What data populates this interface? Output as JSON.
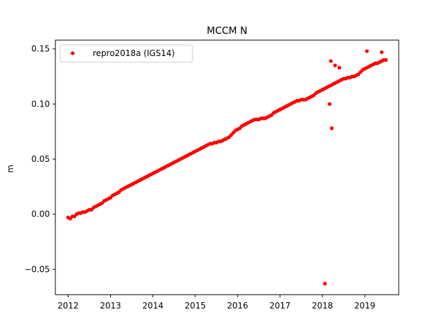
{
  "chart_data": {
    "type": "scatter",
    "title": "MCCM N",
    "xlabel": "",
    "ylabel": "m",
    "xlim": [
      2011.7,
      2019.8
    ],
    "ylim": [
      -0.073,
      0.158
    ],
    "xticks": [
      2012,
      2013,
      2014,
      2015,
      2016,
      2017,
      2018,
      2019
    ],
    "xtick_labels": [
      "2012",
      "2013",
      "2014",
      "2015",
      "2016",
      "2017",
      "2018",
      "2019"
    ],
    "yticks": [
      -0.05,
      0.0,
      0.05,
      0.1,
      0.15
    ],
    "ytick_labels": [
      "−0.05",
      "0.00",
      "0.05",
      "0.10",
      "0.15"
    ],
    "grid": false,
    "legend_position": "upper-left",
    "series": [
      {
        "name": "repro2018a (IGS14)",
        "color": "#ff0000",
        "marker": "circle",
        "points": [
          [
            2012.0,
            -0.003
          ],
          [
            2012.05,
            -0.004
          ],
          [
            2012.1,
            -0.002
          ],
          [
            2012.15,
            -0.002
          ],
          [
            2012.2,
            0.0
          ],
          [
            2012.25,
            0.001
          ],
          [
            2012.3,
            0.001
          ],
          [
            2012.35,
            0.002
          ],
          [
            2012.4,
            0.002
          ],
          [
            2012.45,
            0.003
          ],
          [
            2012.5,
            0.004
          ],
          [
            2012.55,
            0.004
          ],
          [
            2012.6,
            0.006
          ],
          [
            2012.65,
            0.007
          ],
          [
            2012.7,
            0.008
          ],
          [
            2012.75,
            0.009
          ],
          [
            2012.8,
            0.01
          ],
          [
            2012.85,
            0.012
          ],
          [
            2012.9,
            0.013
          ],
          [
            2012.95,
            0.014
          ],
          [
            2013.0,
            0.015
          ],
          [
            2013.05,
            0.017
          ],
          [
            2013.1,
            0.018
          ],
          [
            2013.15,
            0.019
          ],
          [
            2013.2,
            0.02
          ],
          [
            2013.25,
            0.022
          ],
          [
            2013.3,
            0.023
          ],
          [
            2013.35,
            0.024
          ],
          [
            2013.4,
            0.025
          ],
          [
            2013.45,
            0.026
          ],
          [
            2013.5,
            0.027
          ],
          [
            2013.55,
            0.028
          ],
          [
            2013.6,
            0.029
          ],
          [
            2013.65,
            0.03
          ],
          [
            2013.7,
            0.031
          ],
          [
            2013.75,
            0.032
          ],
          [
            2013.8,
            0.033
          ],
          [
            2013.85,
            0.034
          ],
          [
            2013.9,
            0.035
          ],
          [
            2013.95,
            0.036
          ],
          [
            2014.0,
            0.037
          ],
          [
            2014.05,
            0.038
          ],
          [
            2014.1,
            0.039
          ],
          [
            2014.15,
            0.04
          ],
          [
            2014.2,
            0.041
          ],
          [
            2014.25,
            0.042
          ],
          [
            2014.3,
            0.043
          ],
          [
            2014.35,
            0.044
          ],
          [
            2014.4,
            0.045
          ],
          [
            2014.45,
            0.046
          ],
          [
            2014.5,
            0.047
          ],
          [
            2014.55,
            0.048
          ],
          [
            2014.6,
            0.049
          ],
          [
            2014.65,
            0.05
          ],
          [
            2014.7,
            0.051
          ],
          [
            2014.75,
            0.052
          ],
          [
            2014.8,
            0.053
          ],
          [
            2014.85,
            0.054
          ],
          [
            2014.9,
            0.055
          ],
          [
            2014.95,
            0.056
          ],
          [
            2015.0,
            0.057
          ],
          [
            2015.05,
            0.058
          ],
          [
            2015.1,
            0.059
          ],
          [
            2015.15,
            0.06
          ],
          [
            2015.2,
            0.061
          ],
          [
            2015.25,
            0.062
          ],
          [
            2015.3,
            0.063
          ],
          [
            2015.35,
            0.064
          ],
          [
            2015.4,
            0.064
          ],
          [
            2015.45,
            0.065
          ],
          [
            2015.5,
            0.065
          ],
          [
            2015.55,
            0.066
          ],
          [
            2015.6,
            0.066
          ],
          [
            2015.65,
            0.067
          ],
          [
            2015.7,
            0.068
          ],
          [
            2015.75,
            0.069
          ],
          [
            2015.8,
            0.07
          ],
          [
            2015.85,
            0.072
          ],
          [
            2015.9,
            0.074
          ],
          [
            2015.95,
            0.076
          ],
          [
            2016.0,
            0.077
          ],
          [
            2016.05,
            0.078
          ],
          [
            2016.1,
            0.08
          ],
          [
            2016.15,
            0.081
          ],
          [
            2016.2,
            0.082
          ],
          [
            2016.25,
            0.083
          ],
          [
            2016.3,
            0.084
          ],
          [
            2016.35,
            0.085
          ],
          [
            2016.4,
            0.086
          ],
          [
            2016.45,
            0.086
          ],
          [
            2016.5,
            0.086
          ],
          [
            2016.55,
            0.087
          ],
          [
            2016.6,
            0.087
          ],
          [
            2016.65,
            0.087
          ],
          [
            2016.7,
            0.088
          ],
          [
            2016.75,
            0.089
          ],
          [
            2016.8,
            0.09
          ],
          [
            2016.85,
            0.092
          ],
          [
            2016.9,
            0.093
          ],
          [
            2016.95,
            0.094
          ],
          [
            2017.0,
            0.095
          ],
          [
            2017.05,
            0.096
          ],
          [
            2017.1,
            0.097
          ],
          [
            2017.15,
            0.098
          ],
          [
            2017.2,
            0.099
          ],
          [
            2017.25,
            0.1
          ],
          [
            2017.3,
            0.101
          ],
          [
            2017.35,
            0.102
          ],
          [
            2017.4,
            0.103
          ],
          [
            2017.45,
            0.103
          ],
          [
            2017.5,
            0.104
          ],
          [
            2017.55,
            0.104
          ],
          [
            2017.6,
            0.104
          ],
          [
            2017.65,
            0.105
          ],
          [
            2017.7,
            0.106
          ],
          [
            2017.75,
            0.107
          ],
          [
            2017.8,
            0.108
          ],
          [
            2017.85,
            0.11
          ],
          [
            2017.9,
            0.111
          ],
          [
            2017.95,
            0.112
          ],
          [
            2018.0,
            0.113
          ],
          [
            2018.05,
            0.114
          ],
          [
            2018.1,
            0.115
          ],
          [
            2018.15,
            0.116
          ],
          [
            2018.2,
            0.117
          ],
          [
            2018.25,
            0.118
          ],
          [
            2018.3,
            0.119
          ],
          [
            2018.35,
            0.12
          ],
          [
            2018.4,
            0.121
          ],
          [
            2018.45,
            0.122
          ],
          [
            2018.5,
            0.123
          ],
          [
            2018.55,
            0.123
          ],
          [
            2018.6,
            0.124
          ],
          [
            2018.65,
            0.124
          ],
          [
            2018.7,
            0.125
          ],
          [
            2018.75,
            0.125
          ],
          [
            2018.8,
            0.126
          ],
          [
            2018.85,
            0.127
          ],
          [
            2018.9,
            0.129
          ],
          [
            2018.95,
            0.131
          ],
          [
            2019.0,
            0.132
          ],
          [
            2019.05,
            0.133
          ],
          [
            2019.1,
            0.134
          ],
          [
            2019.15,
            0.135
          ],
          [
            2019.2,
            0.136
          ],
          [
            2019.25,
            0.137
          ],
          [
            2019.3,
            0.137
          ],
          [
            2019.35,
            0.138
          ],
          [
            2019.4,
            0.139
          ],
          [
            2019.45,
            0.14
          ],
          [
            2019.5,
            0.14
          ],
          [
            2018.06,
            -0.063
          ],
          [
            2018.22,
            0.078
          ],
          [
            2018.17,
            0.1
          ],
          [
            2018.2,
            0.139
          ],
          [
            2018.4,
            0.133
          ],
          [
            2019.05,
            0.148
          ],
          [
            2018.3,
            0.135
          ],
          [
            2019.4,
            0.147
          ]
        ]
      }
    ]
  }
}
